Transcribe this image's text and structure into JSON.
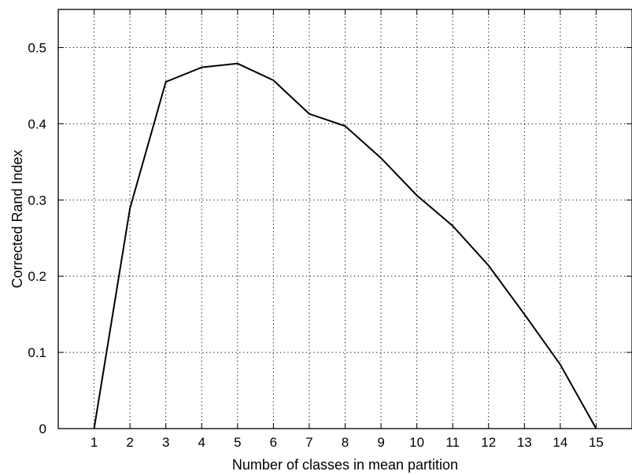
{
  "chart_data": {
    "type": "line",
    "title": "",
    "xlabel": "Number of classes in mean partition",
    "ylabel": "Corrected Rand Index",
    "xlim": [
      0,
      16
    ],
    "ylim": [
      0,
      0.55
    ],
    "xticks": [
      1,
      2,
      3,
      4,
      5,
      6,
      7,
      8,
      9,
      10,
      11,
      12,
      13,
      14,
      15
    ],
    "yticks": [
      0,
      0.1,
      0.2,
      0.3,
      0.4,
      0.5
    ],
    "ytick_labels": [
      "0",
      "0.1",
      "0.2",
      "0.3",
      "0.4",
      "0.5"
    ],
    "grid": true,
    "grid_style": "dotted",
    "line_color": "#000000",
    "x": [
      1,
      2,
      3,
      4,
      5,
      6,
      7,
      8,
      9,
      10,
      11,
      12,
      13,
      14,
      15
    ],
    "series": [
      {
        "values": [
          0.0,
          0.289,
          0.455,
          0.474,
          0.479,
          0.457,
          0.413,
          0.397,
          0.355,
          0.306,
          0.266,
          0.214,
          0.15,
          0.084,
          0.0
        ]
      }
    ]
  }
}
